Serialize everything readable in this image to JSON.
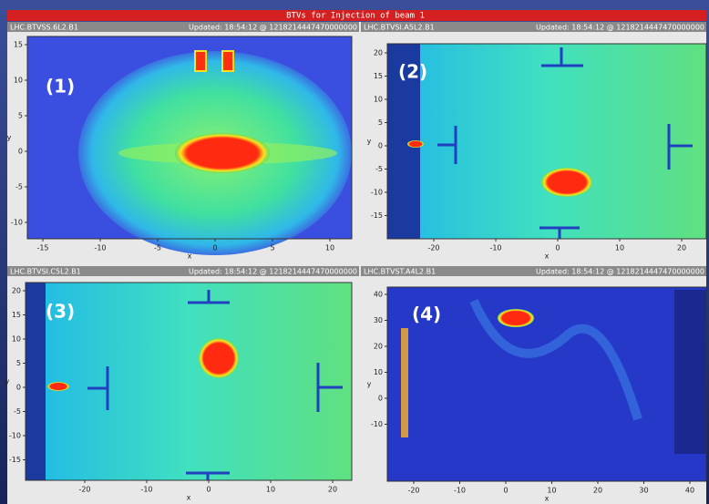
{
  "window": {
    "title": "BTVs for Injection of beam 1"
  },
  "panels": [
    {
      "device": "LHC.BTVSS.6L2.B1",
      "updated": "Updated: 18:54:12 @ 1218214447470000000",
      "label": "(1)",
      "xlabel": "x",
      "ylabel": "y",
      "xticks": [
        -15,
        -10,
        -5,
        0,
        5,
        10
      ],
      "yticks": [
        -10,
        -5,
        0,
        5,
        10,
        15
      ]
    },
    {
      "device": "LHC.BTVSI.A5L2.B1",
      "updated": "Updated: 18:54:12 @ 1218214447470000000",
      "label": "(2)",
      "xlabel": "x",
      "ylabel": "y",
      "xticks": [
        -20,
        -10,
        0,
        10,
        20
      ],
      "yticks": [
        -15,
        -10,
        -5,
        0,
        5,
        10,
        15,
        20
      ]
    },
    {
      "device": "LHC.BTVSI.C5L2.B1",
      "updated": "Updated: 18:54:12 @ 1218214447470000000",
      "label": "(3)",
      "xlabel": "x",
      "ylabel": "y",
      "xticks": [
        -20,
        -10,
        0,
        10,
        20
      ],
      "yticks": [
        -15,
        -10,
        -5,
        0,
        5,
        10,
        15,
        20
      ]
    },
    {
      "device": "LHC.BTVST.A4L2.B1",
      "updated": "Updated: 18:54:12 @ 1218214447470000000",
      "label": "(4)",
      "xlabel": "x",
      "ylabel": "y",
      "xticks": [
        -20,
        -10,
        0,
        10,
        20,
        30,
        40
      ],
      "yticks": [
        -10,
        0,
        10,
        20,
        30,
        40
      ]
    }
  ]
}
